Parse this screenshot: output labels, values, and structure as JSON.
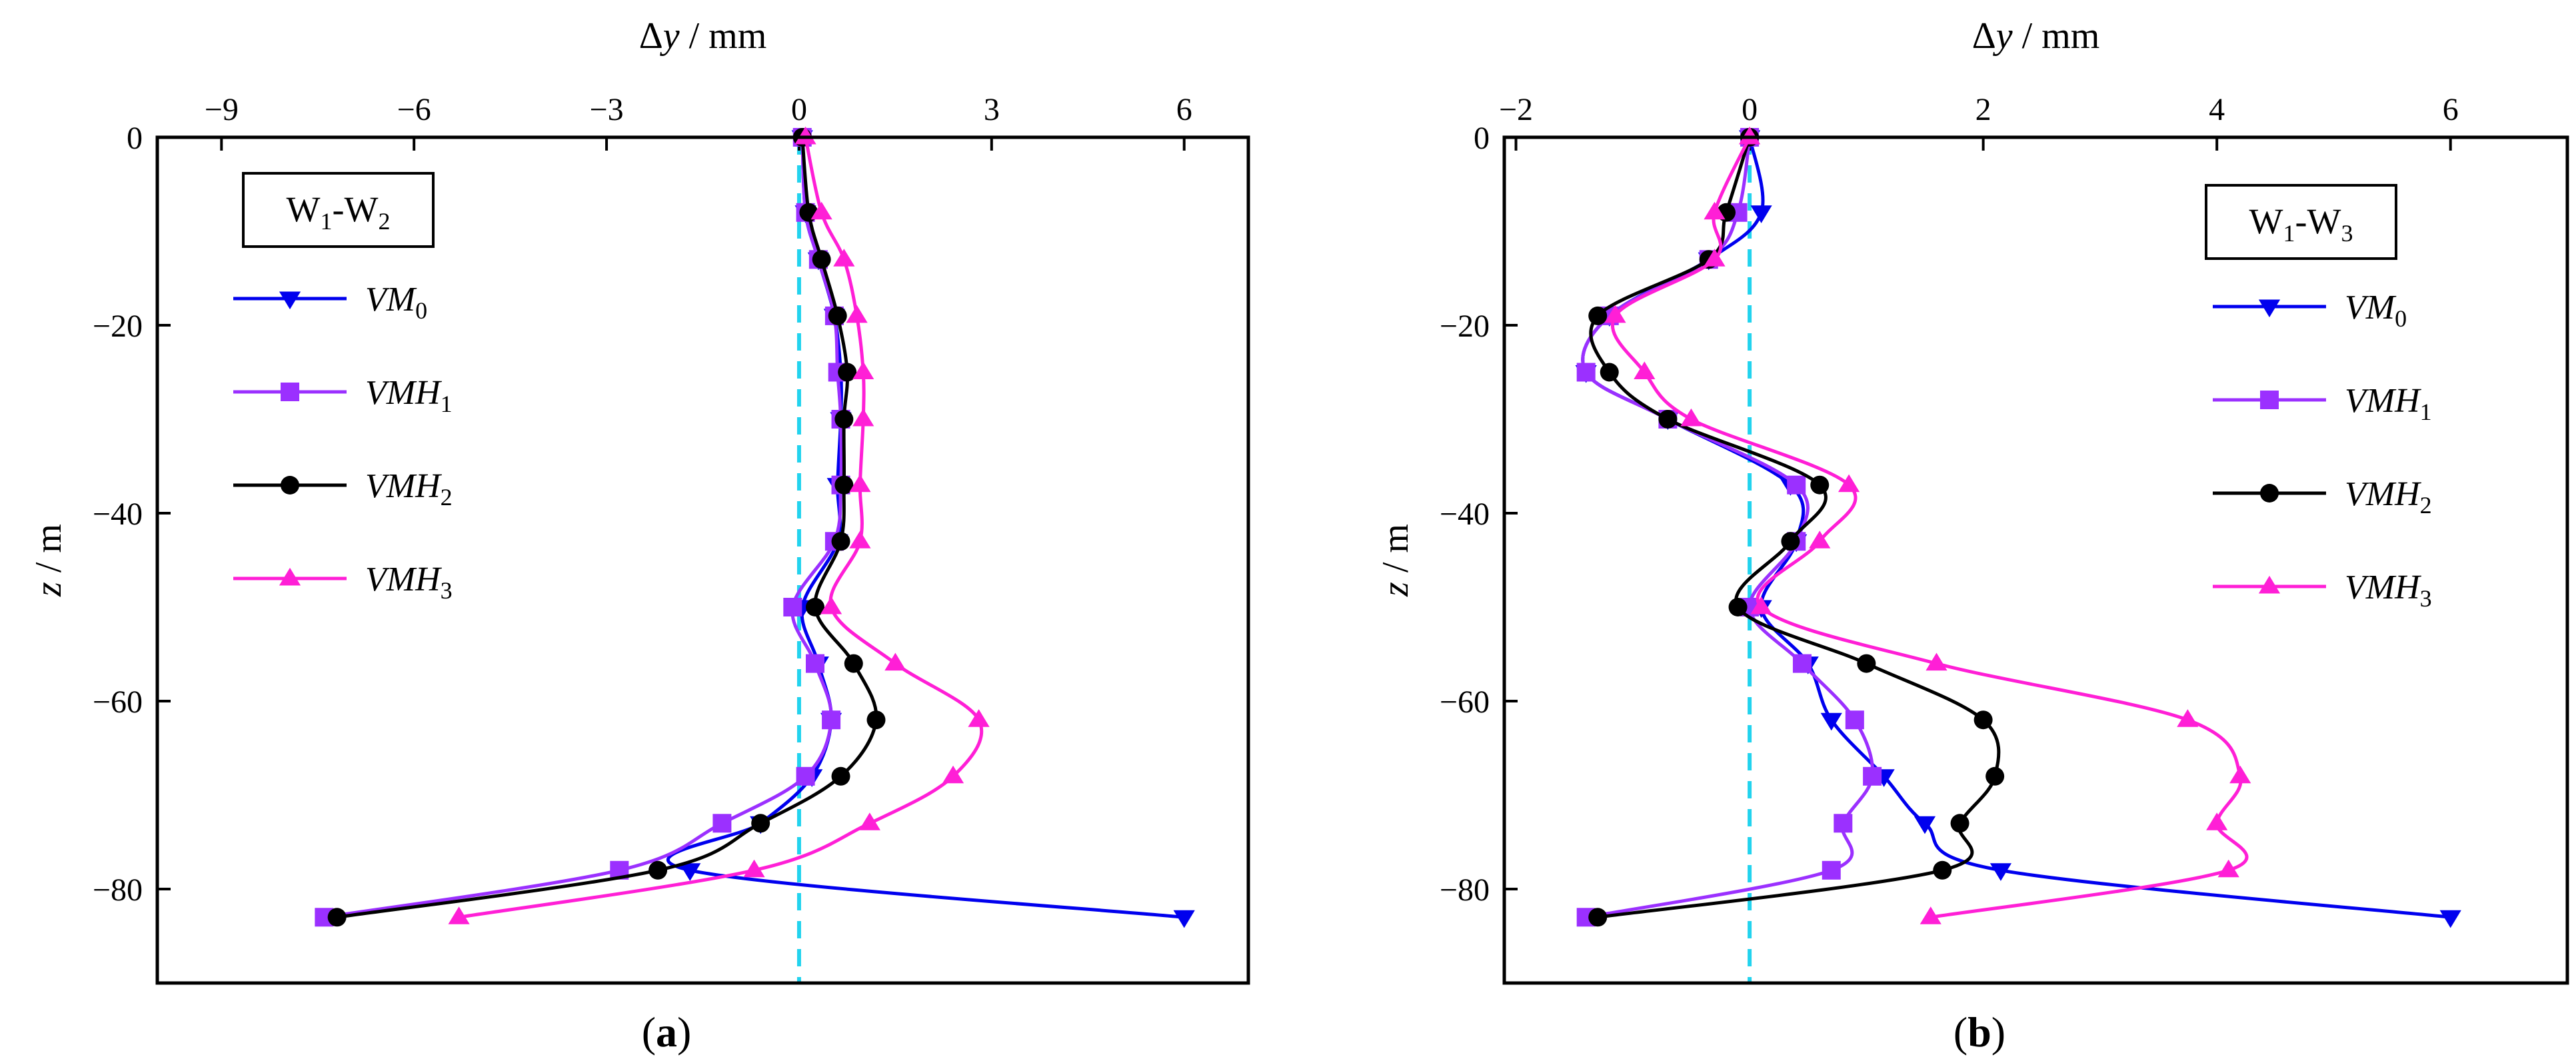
{
  "chart_data": [
    {
      "type": "line",
      "panel_label": "a",
      "xlabel_var": "Δy",
      "xlabel_unit": " / mm",
      "ylabel_var": "z",
      "ylabel_unit": " / m",
      "xlim": [
        -10,
        7
      ],
      "ylim": [
        -90,
        0
      ],
      "xticks": [
        -9,
        -6,
        -3,
        0,
        3,
        6
      ],
      "yticks": [
        0,
        -20,
        -40,
        -60,
        -80
      ],
      "xaxis_position": "top",
      "reference_line": {
        "x": 0,
        "color": "#22d3ee",
        "style": "dashed"
      },
      "box_label": {
        "main1": "W",
        "sub1": "1",
        "sep": "-W",
        "sub2": "2"
      },
      "legend_position": "top-left",
      "z": [
        0,
        -8,
        -13,
        -19,
        -25,
        -30,
        -37,
        -43,
        -50,
        -56,
        -62,
        -68,
        -73,
        -78,
        -83
      ],
      "series": [
        {
          "name": "VM",
          "sub": "0",
          "color": "#0000ee",
          "marker": "triangle-down",
          "values": [
            0.05,
            0.1,
            0.3,
            0.55,
            0.65,
            0.65,
            0.6,
            0.6,
            0.05,
            0.3,
            0.5,
            0.2,
            -0.6,
            -1.7,
            6.0
          ]
        },
        {
          "name": "VMH",
          "sub": "1",
          "color": "#9b30ff",
          "marker": "square",
          "values": [
            0.05,
            0.1,
            0.3,
            0.55,
            0.6,
            0.65,
            0.65,
            0.55,
            -0.1,
            0.25,
            0.5,
            0.1,
            -1.2,
            -2.8,
            -7.4
          ]
        },
        {
          "name": "VMH",
          "sub": "2",
          "color": "#000000",
          "marker": "circle",
          "values": [
            0.05,
            0.15,
            0.35,
            0.6,
            0.75,
            0.7,
            0.7,
            0.65,
            0.25,
            0.85,
            1.2,
            0.65,
            -0.6,
            -2.2,
            -7.2
          ]
        },
        {
          "name": "VMH",
          "sub": "3",
          "color": "#ff1fd6",
          "marker": "triangle-up",
          "values": [
            0.1,
            0.35,
            0.7,
            0.9,
            1.0,
            1.0,
            0.95,
            0.95,
            0.5,
            1.5,
            2.8,
            2.4,
            1.1,
            -0.7,
            -5.3
          ]
        }
      ]
    },
    {
      "type": "line",
      "panel_label": "b",
      "xlabel_var": "Δy",
      "xlabel_unit": " / mm",
      "ylabel_var": "z",
      "ylabel_unit": " / m",
      "xlim": [
        -2.1,
        7.0
      ],
      "ylim": [
        -90,
        0
      ],
      "xticks": [
        -2,
        0,
        2,
        4,
        6
      ],
      "yticks": [
        0,
        -20,
        -40,
        -60,
        -80
      ],
      "xaxis_position": "top",
      "reference_line": {
        "x": 0,
        "color": "#22d3ee",
        "style": "dashed"
      },
      "box_label": {
        "main1": "W",
        "sub1": "1",
        "sep": "-W",
        "sub2": "3"
      },
      "legend_position": "top-right",
      "z": [
        0,
        -8,
        -13,
        -19,
        -25,
        -30,
        -37,
        -43,
        -50,
        -56,
        -62,
        -68,
        -73,
        -78,
        -83
      ],
      "series": [
        {
          "name": "VM",
          "sub": "0",
          "color": "#0000ee",
          "marker": "triangle-down",
          "values": [
            0.0,
            0.1,
            -0.35,
            -1.2,
            -1.4,
            -0.7,
            0.35,
            0.4,
            0.1,
            0.5,
            0.7,
            1.15,
            1.5,
            2.15,
            6.0
          ]
        },
        {
          "name": "VMH",
          "sub": "1",
          "color": "#9b30ff",
          "marker": "square",
          "values": [
            0.0,
            -0.1,
            -0.35,
            -1.2,
            -1.4,
            -0.7,
            0.4,
            0.4,
            0.0,
            0.45,
            0.9,
            1.05,
            0.8,
            0.7,
            -1.4
          ]
        },
        {
          "name": "VMH",
          "sub": "2",
          "color": "#000000",
          "marker": "circle",
          "values": [
            0.0,
            -0.2,
            -0.35,
            -1.3,
            -1.2,
            -0.7,
            0.6,
            0.35,
            -0.1,
            1.0,
            2.0,
            2.1,
            1.8,
            1.65,
            -1.3
          ]
        },
        {
          "name": "VMH",
          "sub": "3",
          "color": "#ff1fd6",
          "marker": "triangle-up",
          "values": [
            0.0,
            -0.3,
            -0.3,
            -1.15,
            -0.9,
            -0.5,
            0.85,
            0.6,
            0.1,
            1.6,
            3.75,
            4.2,
            4.0,
            4.1,
            1.55
          ]
        }
      ]
    }
  ]
}
